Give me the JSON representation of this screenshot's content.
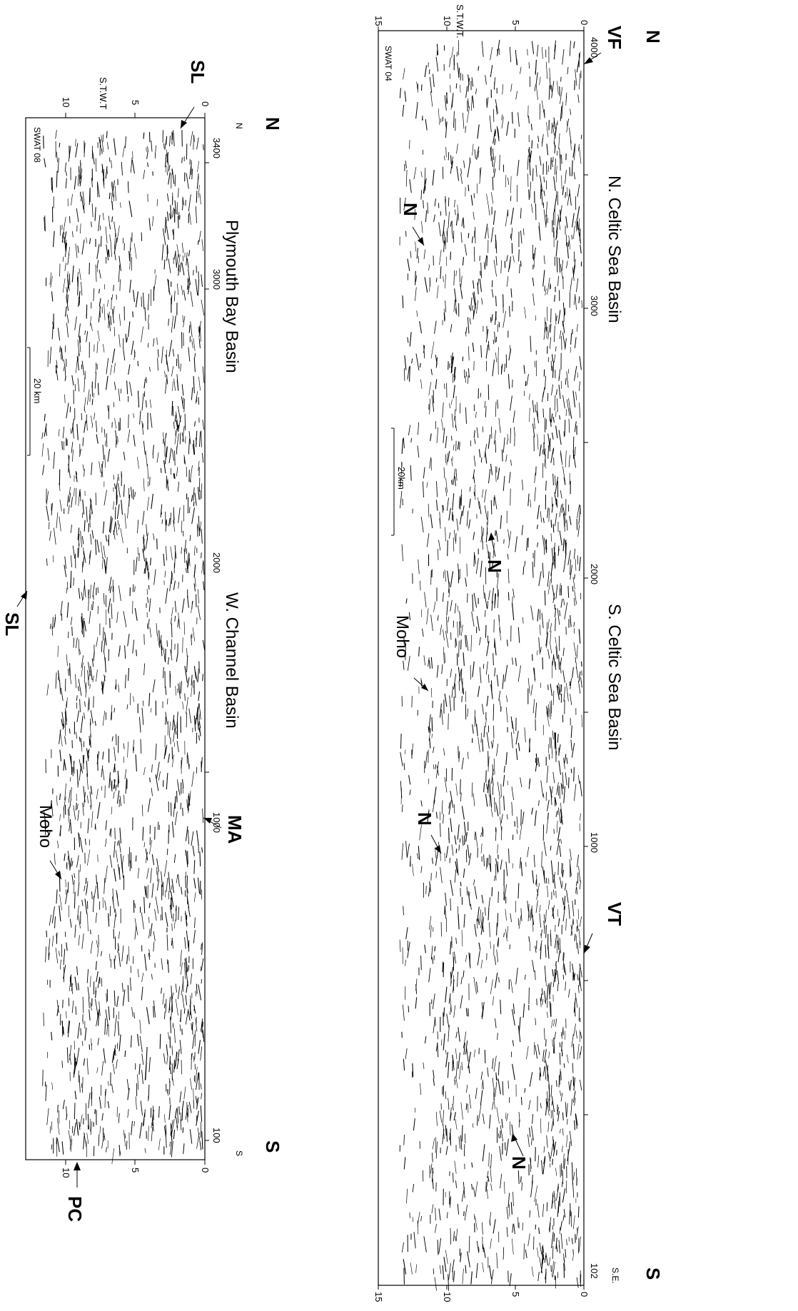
{
  "left_panel": {
    "profile_id": "SWAT 08",
    "axis_label": "S.T.W.T",
    "end_letter_north": "N",
    "end_letter_south": "S",
    "compass_north": "N",
    "compass_south": "S",
    "time_ticks": [
      "0",
      "5",
      "10"
    ],
    "time_ticks_bottom": [
      "0",
      "5",
      "10"
    ],
    "shot_ticks": [
      "3400",
      "3000",
      "2000",
      "1000",
      "100"
    ],
    "basin_labels": [
      "Plymouth Bay Basin",
      "W. Channel Basin"
    ],
    "scale_bar": "20 km",
    "annotations": {
      "sl_top": "SL",
      "sl_bottom": "SL",
      "ma": "MA",
      "moho": "Moho",
      "pc": "PC"
    }
  },
  "right_panel": {
    "profile_id": "SWAT 04",
    "axis_label": "S.T.W.T.",
    "compass_north": "N",
    "compass_south": "S",
    "end_letter_south": "S.E.",
    "time_ticks": [
      "0",
      "5",
      "10",
      "15"
    ],
    "time_ticks_bottom": [
      "0",
      "5",
      "10",
      "15"
    ],
    "shot_ticks": [
      "4000",
      "3000",
      "2000",
      "1000",
      "102"
    ],
    "basin_labels": [
      "N. Celtic Sea Basin",
      "S. Celtic Sea Basin"
    ],
    "scale_bar": "20km",
    "annotations": {
      "vf": "VF",
      "vt": "VT",
      "moho": "Moho",
      "n_labels": [
        "N",
        "N",
        "N",
        "N"
      ]
    }
  }
}
